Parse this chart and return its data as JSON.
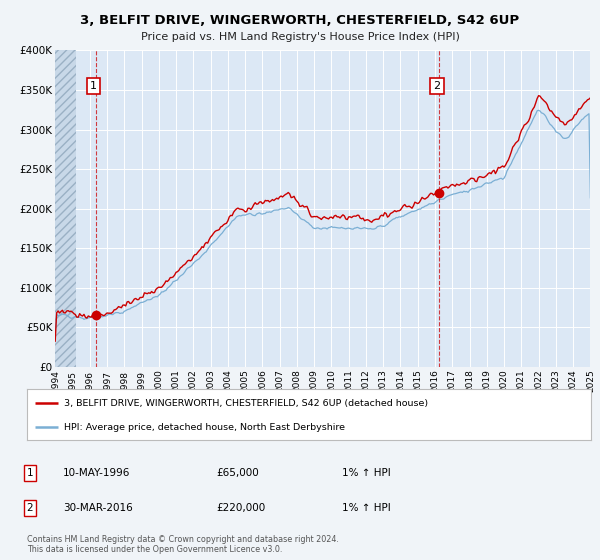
{
  "title": "3, BELFIT DRIVE, WINGERWORTH, CHESTERFIELD, S42 6UP",
  "subtitle": "Price paid vs. HM Land Registry's House Price Index (HPI)",
  "bg_color": "#f0f4f8",
  "plot_bg_color": "#dce8f5",
  "red_line_color": "#cc0000",
  "blue_line_color": "#7bafd4",
  "marker_color": "#cc0000",
  "legend_label_red": "3, BELFIT DRIVE, WINGERWORTH, CHESTERFIELD, S42 6UP (detached house)",
  "legend_label_blue": "HPI: Average price, detached house, North East Derbyshire",
  "sale1_x": 1996.36,
  "sale1_y": 65000,
  "sale2_x": 2016.25,
  "sale2_y": 220000,
  "annotation1_date": "10-MAY-1996",
  "annotation1_price": "£65,000",
  "annotation1_hpi": "1% ↑ HPI",
  "annotation2_date": "30-MAR-2016",
  "annotation2_price": "£220,000",
  "annotation2_hpi": "1% ↑ HPI",
  "vline_color": "#cc0000",
  "footer_line1": "Contains HM Land Registry data © Crown copyright and database right 2024.",
  "footer_line2": "This data is licensed under the Open Government Licence v3.0.",
  "ylim": [
    0,
    400000
  ],
  "xlim": [
    1994,
    2025
  ],
  "yticks": [
    0,
    50000,
    100000,
    150000,
    200000,
    250000,
    300000,
    350000,
    400000
  ],
  "ytick_labels": [
    "£0",
    "£50K",
    "£100K",
    "£150K",
    "£200K",
    "£250K",
    "£300K",
    "£350K",
    "£400K"
  ],
  "xticks": [
    1994,
    1995,
    1996,
    1997,
    1998,
    1999,
    2000,
    2001,
    2002,
    2003,
    2004,
    2005,
    2006,
    2007,
    2008,
    2009,
    2010,
    2011,
    2012,
    2013,
    2014,
    2015,
    2016,
    2017,
    2018,
    2019,
    2020,
    2021,
    2022,
    2023,
    2024,
    2025
  ]
}
